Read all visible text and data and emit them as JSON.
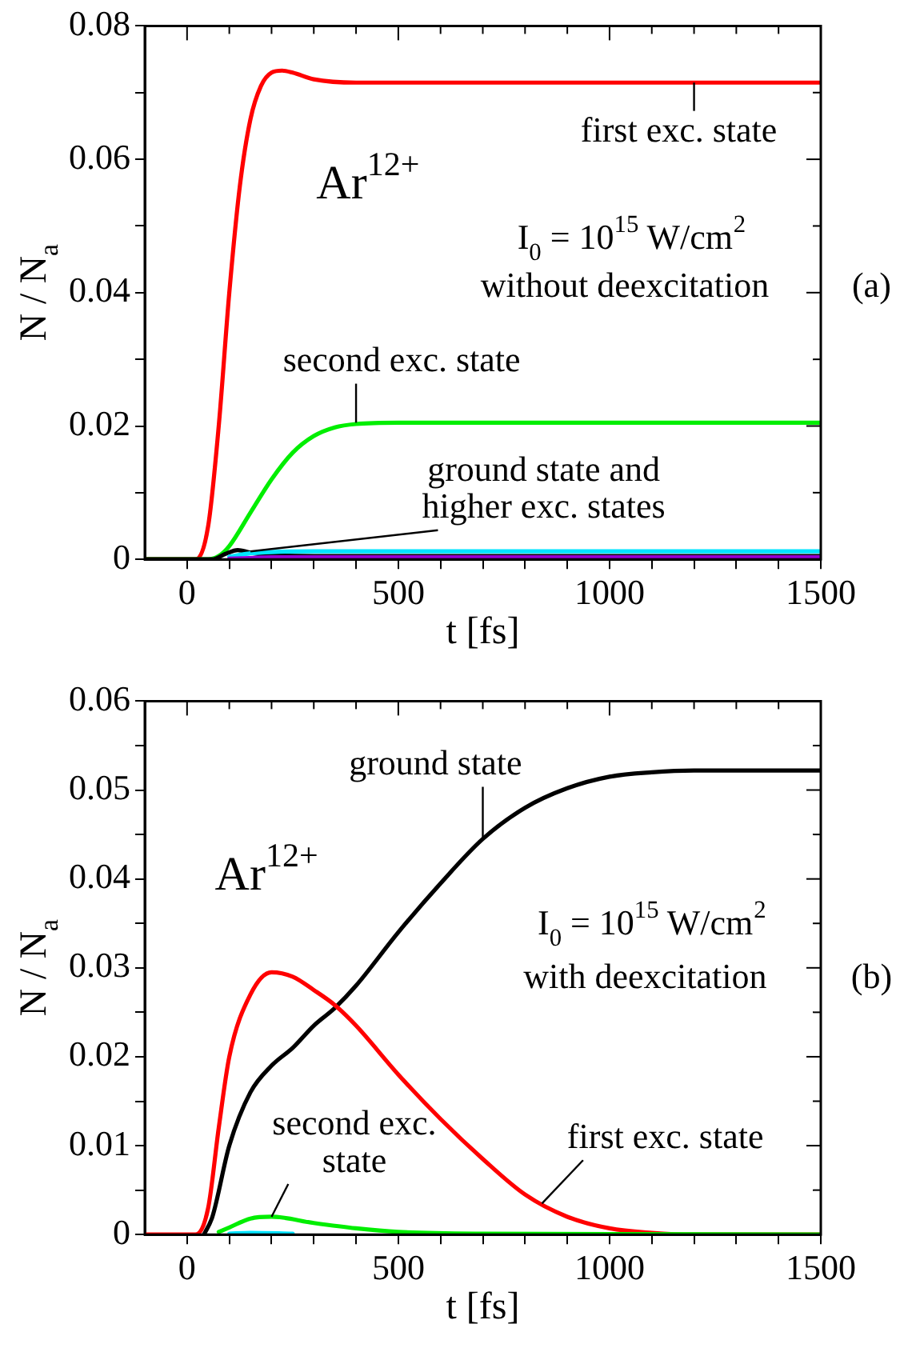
{
  "chart_data": [
    {
      "type": "line",
      "xlabel": "t [fs]",
      "ylabel": "N / N$_{a}$",
      "xlim": [
        -100,
        1500
      ],
      "ylim": [
        0,
        0.08
      ],
      "xticks": [
        0,
        500,
        1000,
        1500,
        {
          "value": 100,
          "label": null
        },
        {
          "value": 200,
          "label": null
        },
        {
          "value": 300,
          "label": null
        },
        {
          "value": 400,
          "label": null
        },
        {
          "value": 600,
          "label": null
        },
        {
          "value": 700,
          "label": null
        },
        {
          "value": 800,
          "label": null
        },
        {
          "value": 900,
          "label": null
        },
        {
          "value": 1100,
          "label": null
        },
        {
          "value": 1200,
          "label": null
        },
        {
          "value": 1300,
          "label": null
        },
        {
          "value": 1400,
          "label": null
        }
      ],
      "yticks": [
        0,
        0.02,
        0.04,
        0.06,
        0.08,
        {
          "value": 0.01,
          "label": null
        },
        {
          "value": 0.03,
          "label": null
        },
        {
          "value": 0.05,
          "label": null
        },
        {
          "value": 0.07,
          "label": null
        }
      ],
      "grid": false,
      "legend": false,
      "marker": "none",
      "line_style": "solid",
      "series": [
        {
          "color": "#9400d3",
          "x": [
            100,
            150,
            200,
            1500
          ],
          "values": [
            0.0001,
            0.0002,
            0.0003,
            0.0003
          ]
        },
        {
          "color": "#00e5ff",
          "x": [
            100,
            150,
            200,
            300,
            1500
          ],
          "values": [
            0.0004,
            0.0009,
            0.0011,
            0.0012,
            0.0012
          ]
        },
        {
          "color": "#000000",
          "x": [
            -100,
            60,
            90,
            120,
            150,
            200,
            300,
            1500
          ],
          "values": [
            0,
            0,
            0.0008,
            0.0014,
            0.001,
            0.0006,
            0.0005,
            0.0005
          ]
        },
        {
          "color": "#00ee00",
          "x": [
            -100,
            50,
            75,
            100,
            150,
            200,
            250,
            300,
            350,
            400,
            500,
            1500
          ],
          "values": [
            0,
            0,
            0.0005,
            0.002,
            0.007,
            0.012,
            0.016,
            0.0185,
            0.0198,
            0.0203,
            0.0205,
            0.0205
          ]
        },
        {
          "color": "#ff0000",
          "x": [
            -100,
            20,
            50,
            75,
            100,
            125,
            150,
            175,
            200,
            225,
            250,
            300,
            400,
            1500
          ],
          "values": [
            0,
            0,
            0.005,
            0.02,
            0.04,
            0.056,
            0.066,
            0.071,
            0.073,
            0.0733,
            0.073,
            0.072,
            0.0715,
            0.0715
          ]
        }
      ],
      "annotations": [
        {
          "text": "first exc. state",
          "x": 1200,
          "y": 0.0715
        },
        {
          "text": "second exc. state",
          "x": 400,
          "y": 0.0205
        },
        {
          "text": "ground state and higher exc. states",
          "x": 150,
          "y": 0.0012
        },
        "Ar$^{12+}$",
        "I$_{0}$ = 10$^{15}$ W/cm$^{2}$",
        "without deexcitation",
        "(a)"
      ]
    },
    {
      "type": "line",
      "xlabel": "t [fs]",
      "ylabel": "N / N$_{a}$",
      "xlim": [
        -100,
        1500
      ],
      "ylim": [
        0,
        0.06
      ],
      "xticks": [
        0,
        500,
        1000,
        1500,
        {
          "value": 100,
          "label": null
        },
        {
          "value": 200,
          "label": null
        },
        {
          "value": 300,
          "label": null
        },
        {
          "value": 400,
          "label": null
        },
        {
          "value": 600,
          "label": null
        },
        {
          "value": 700,
          "label": null
        },
        {
          "value": 800,
          "label": null
        },
        {
          "value": 900,
          "label": null
        },
        {
          "value": 1100,
          "label": null
        },
        {
          "value": 1200,
          "label": null
        },
        {
          "value": 1300,
          "label": null
        },
        {
          "value": 1400,
          "label": null
        }
      ],
      "yticks": [
        0,
        0.01,
        0.02,
        0.03,
        0.04,
        0.05,
        0.06,
        {
          "value": 0.005,
          "label": null
        },
        {
          "value": 0.015,
          "label": null
        },
        {
          "value": 0.025,
          "label": null
        },
        {
          "value": 0.035,
          "label": null
        },
        {
          "value": 0.045,
          "label": null
        },
        {
          "value": 0.055,
          "label": null
        }
      ],
      "grid": false,
      "legend": false,
      "marker": "none",
      "line_style": "solid",
      "series": [
        {
          "color": "#00e5ff",
          "x": [
            100,
            150,
            250
          ],
          "values": [
            0.0001,
            0.0002,
            0.0001
          ]
        },
        {
          "color": "#00ee00",
          "x": [
            75,
            100,
            150,
            200,
            300,
            400,
            500,
            700,
            1500
          ],
          "values": [
            0.0003,
            0.0008,
            0.0018,
            0.002,
            0.0013,
            0.0007,
            0.0003,
            0.0001,
            0
          ]
        },
        {
          "color": "#ff0000",
          "x": [
            -100,
            20,
            50,
            75,
            100,
            150,
            200,
            250,
            300,
            350,
            400,
            500,
            600,
            700,
            800,
            900,
            1000,
            1100,
            1200,
            1500
          ],
          "values": [
            0,
            0,
            0.003,
            0.012,
            0.02,
            0.027,
            0.0295,
            0.029,
            0.0275,
            0.0258,
            0.0235,
            0.018,
            0.013,
            0.0085,
            0.0045,
            0.002,
            0.0007,
            0.0002,
            0,
            0
          ]
        },
        {
          "color": "#000000",
          "x": [
            40,
            60,
            100,
            150,
            200,
            250,
            300,
            350,
            400,
            500,
            600,
            700,
            800,
            900,
            1000,
            1100,
            1200,
            1500
          ],
          "values": [
            0,
            0.002,
            0.01,
            0.016,
            0.019,
            0.021,
            0.0235,
            0.0255,
            0.028,
            0.034,
            0.0395,
            0.0445,
            0.048,
            0.0502,
            0.0515,
            0.052,
            0.0522,
            0.0522
          ]
        }
      ],
      "annotations": [
        {
          "text": "ground state",
          "x": 700,
          "y": 0.0445
        },
        "Ar$^{12+}$",
        "I$_{0}$ = 10$^{15}$ W/cm$^{2}$",
        "with deexcitation",
        "(b)",
        {
          "text": "second exc. state",
          "x": 200,
          "y": 0.002
        },
        {
          "text": "first exc. state",
          "x": 840,
          "y": 0.0035
        }
      ]
    }
  ]
}
